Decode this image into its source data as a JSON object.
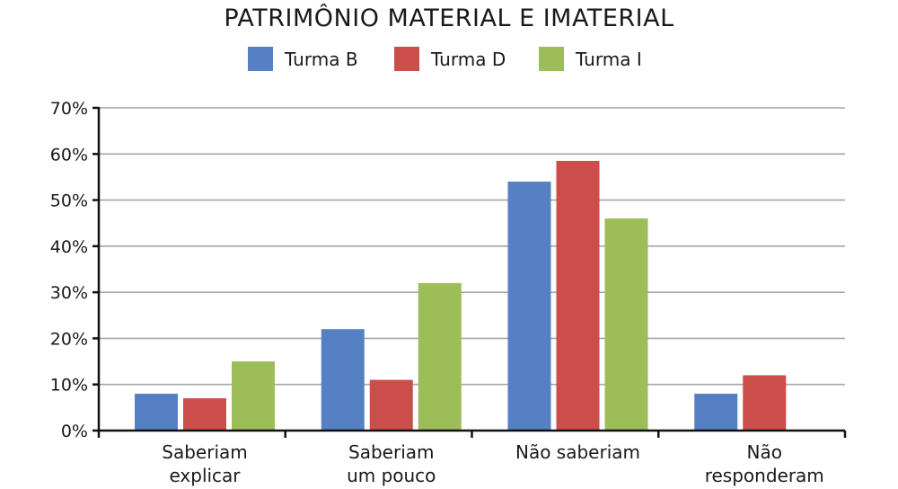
{
  "chart_data": {
    "type": "bar",
    "title": "PATRIMÔNIO MATERIAL E IMATERIAL",
    "categories": [
      [
        "Saberiam",
        "explicar"
      ],
      [
        "Saberiam",
        "um pouco"
      ],
      [
        "Não saberiam"
      ],
      [
        "Não",
        "responderam"
      ]
    ],
    "series": [
      {
        "name": "Turma B",
        "color": "#5580c4",
        "values": [
          8,
          22,
          54,
          8
        ]
      },
      {
        "name": "Turma D",
        "color": "#cc4e4a",
        "values": [
          7,
          11,
          58.5,
          12
        ]
      },
      {
        "name": "Turma I",
        "color": "#9cbd58",
        "values": [
          15,
          32,
          46,
          0
        ]
      }
    ],
    "ylim": [
      0,
      70
    ],
    "yticks": [
      0,
      10,
      20,
      30,
      40,
      50,
      60,
      70
    ],
    "ytick_labels": [
      "0%",
      "10%",
      "20%",
      "30%",
      "40%",
      "50%",
      "60%",
      "70%"
    ],
    "grid": true,
    "legend_position": "top-center"
  }
}
